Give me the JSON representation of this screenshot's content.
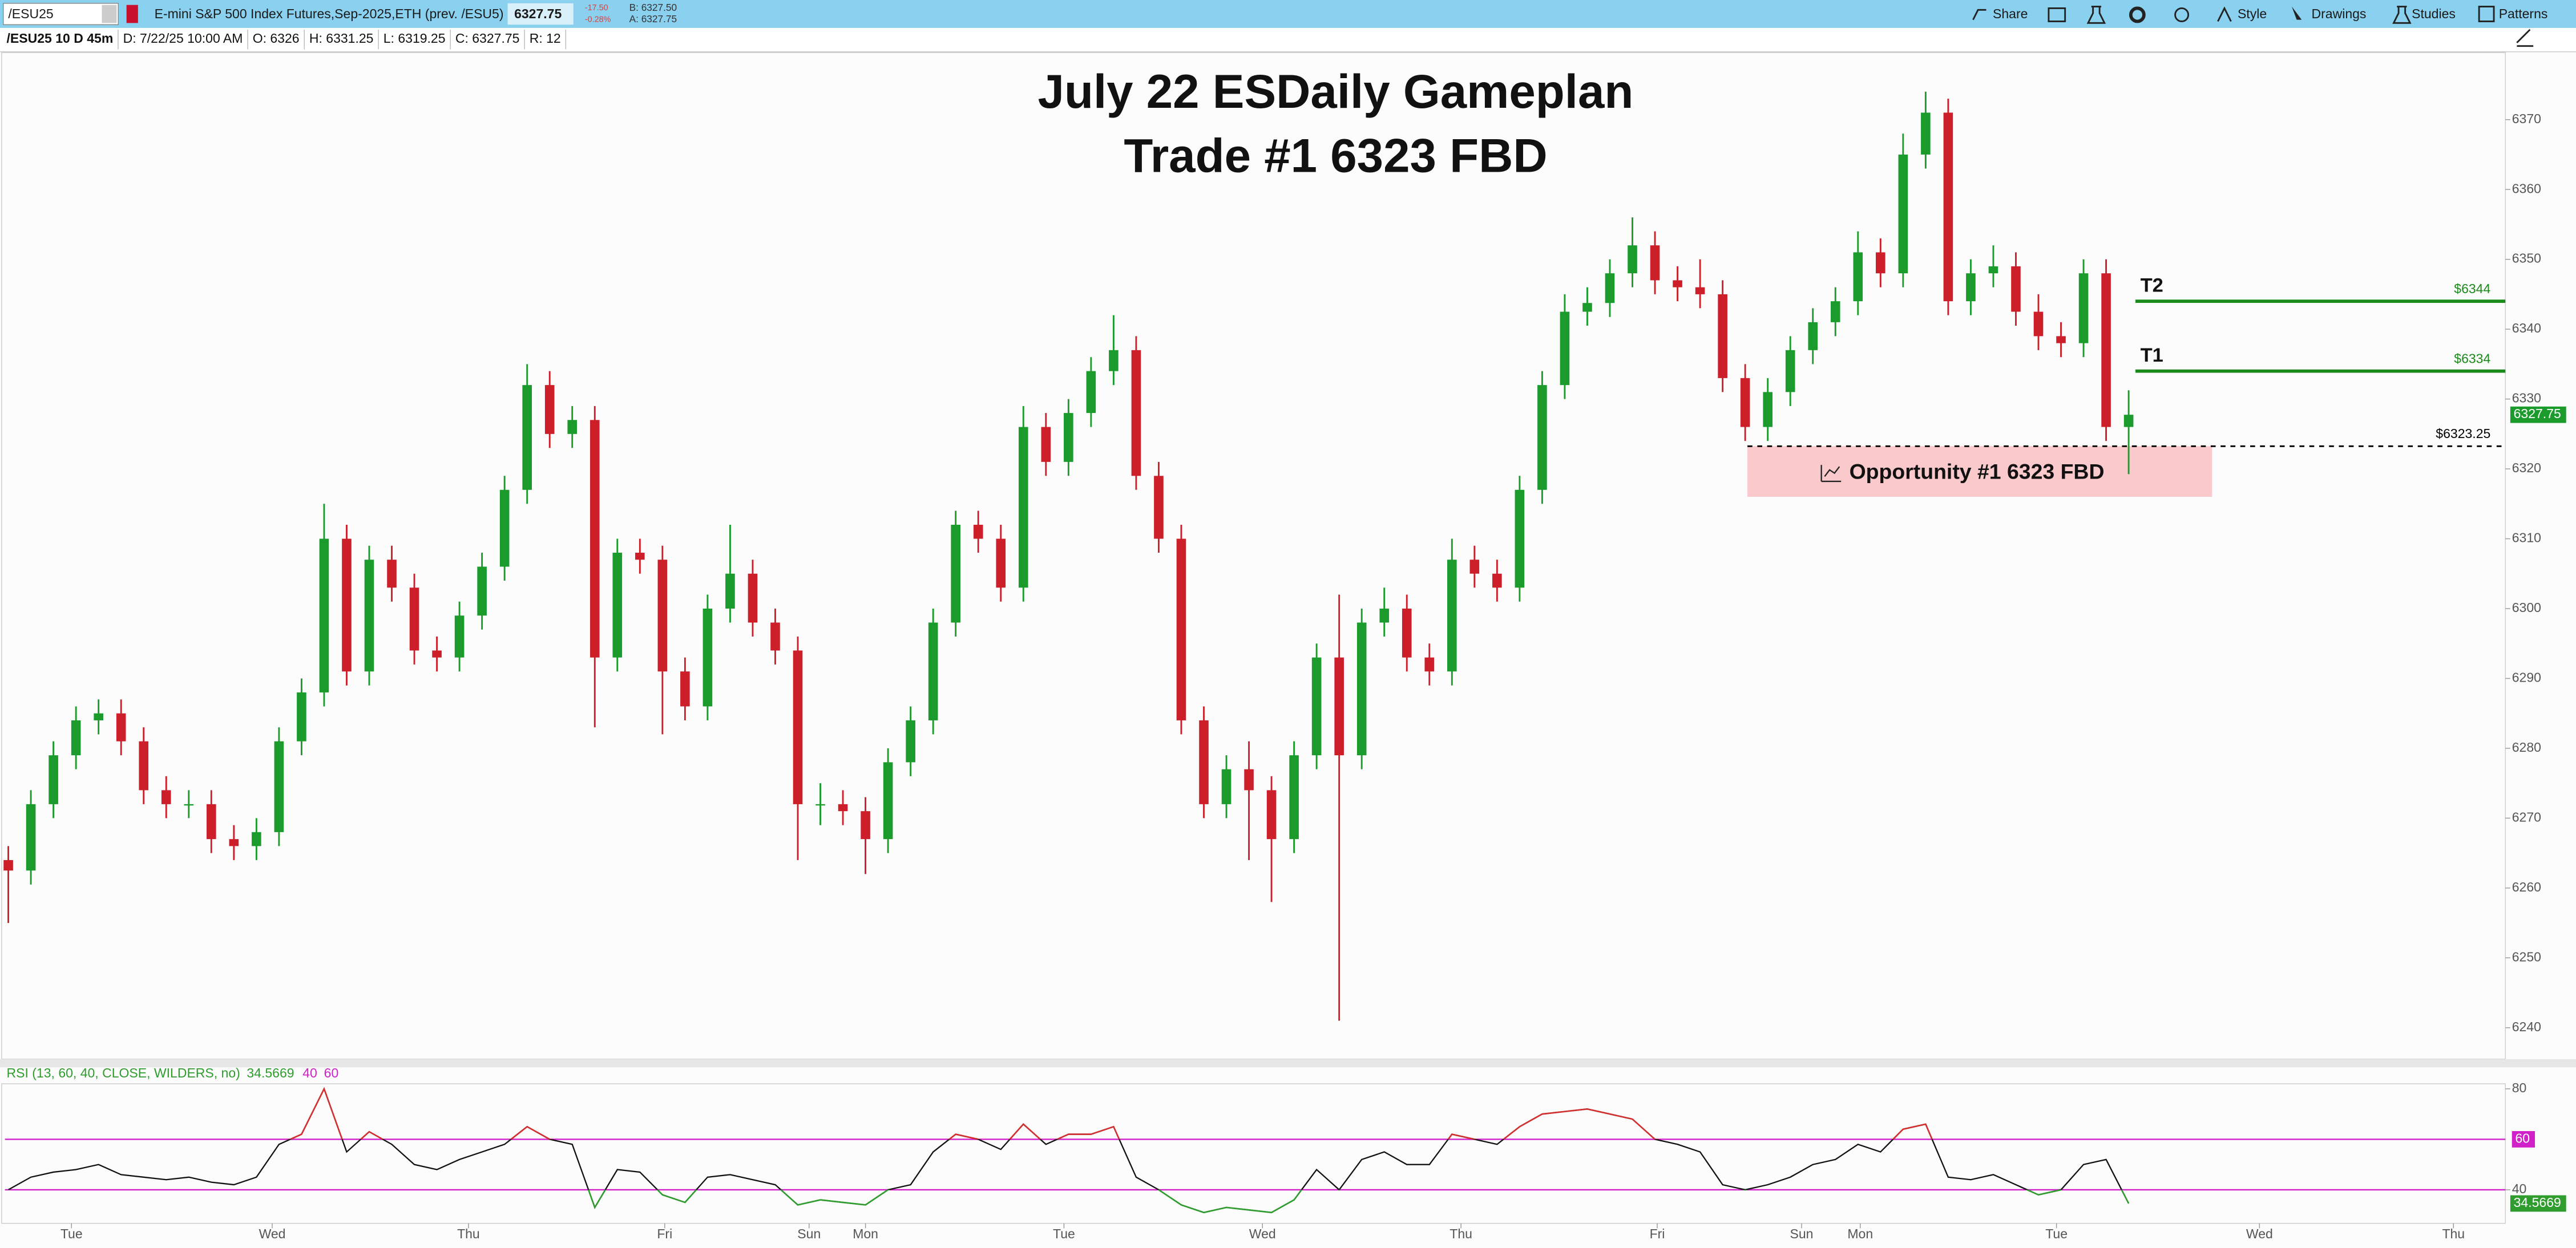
{
  "toolbar": {
    "symbol": "/ESU25",
    "description": "E-mini S&P 500 Index Futures,Sep-2025,ETH (prev. /ESU5)",
    "last": "6327.75",
    "change": "-17.50",
    "change_pct": "-0.28%",
    "bid": "B: 6327.50",
    "ask": "A: 6327.75",
    "buttons": [
      "Share",
      "Style",
      "Drawings",
      "Studies",
      "Patterns"
    ]
  },
  "info_bar": [
    "/ESU25 10 D 45m",
    "D: 7/22/25 10:00 AM",
    "O: 6326",
    "H: 6331.25",
    "L: 6319.25",
    "C: 6327.75",
    "R: 12"
  ],
  "chart_data": [
    {
      "type": "candlestick",
      "title": "July 22 ESDaily Gameplan",
      "subtitle": "Trade #1 6323 FBD",
      "up_color": "#1a9b2c",
      "down_color": "#cc1f2a",
      "xlim": [
        -0.15,
        110.7
      ],
      "ylim": [
        6235.5,
        6379.6
      ],
      "yticks": [
        6240,
        6250,
        6260,
        6270,
        6280,
        6290,
        6300,
        6310,
        6320,
        6330,
        6340,
        6350,
        6360,
        6370
      ],
      "open": [
        6264,
        6262.5,
        6272,
        6279,
        6284,
        6285,
        6281,
        6274,
        6272,
        6272,
        6267,
        6266,
        6268,
        6281,
        6288,
        6310,
        6291,
        6307,
        6303,
        6294,
        6293,
        6299,
        6306,
        6317,
        6332,
        6325,
        6327,
        6293,
        6308,
        6307,
        6291,
        6286,
        6300,
        6305,
        6298,
        6294,
        6272,
        6272,
        6271,
        6267,
        6278,
        6284,
        6298,
        6312,
        6310,
        6303,
        6326,
        6321,
        6328,
        6334,
        6337,
        6319,
        6310,
        6284,
        6272,
        6277,
        6274,
        6267,
        6279,
        6293,
        6279,
        6298,
        6300,
        6293,
        6291,
        6307,
        6305,
        6303,
        6317,
        6332,
        6342.5,
        6343.75,
        6348,
        6352,
        6347,
        6346,
        6345,
        6333,
        6326,
        6331,
        6337,
        6341,
        6344,
        6351,
        6348,
        6365,
        6371,
        6344,
        6348,
        6349,
        6342.5,
        6339,
        6338,
        6348,
        6326
      ],
      "high": [
        6266,
        6274,
        6281,
        6286,
        6287,
        6287,
        6283,
        6276,
        6274,
        6274,
        6269,
        6270,
        6283,
        6290,
        6315,
        6312,
        6309,
        6309,
        6305,
        6296,
        6301,
        6308,
        6319,
        6335,
        6334,
        6329,
        6329,
        6310,
        6310,
        6309,
        6293,
        6302,
        6312,
        6307,
        6300,
        6296,
        6275,
        6274,
        6273,
        6280,
        6286,
        6300,
        6314,
        6314,
        6312,
        6329,
        6328,
        6330,
        6336,
        6342,
        6339,
        6321,
        6312,
        6286,
        6279,
        6281,
        6276,
        6281,
        6295,
        6302,
        6300,
        6303,
        6302,
        6295,
        6310,
        6309,
        6307,
        6319,
        6334,
        6345,
        6346,
        6350,
        6356,
        6354,
        6349,
        6350,
        6347,
        6335,
        6333,
        6339,
        6343,
        6346,
        6354,
        6353,
        6368,
        6374,
        6373,
        6350,
        6352,
        6351,
        6345,
        6341,
        6350,
        6350,
        6331.25
      ],
      "low": [
        6255,
        6260.5,
        6270,
        6277,
        6282,
        6279,
        6272,
        6270,
        6270,
        6265,
        6264,
        6264,
        6266,
        6279,
        6286,
        6289,
        6289,
        6301,
        6292,
        6291,
        6291,
        6297,
        6304,
        6315,
        6323,
        6323,
        6283,
        6291,
        6305,
        6282,
        6284,
        6284,
        6298,
        6296,
        6292,
        6264,
        6269,
        6269,
        6262,
        6265,
        6276,
        6282,
        6296,
        6308,
        6301,
        6301,
        6319,
        6319,
        6326,
        6332,
        6317,
        6308,
        6282,
        6270,
        6270,
        6264,
        6258,
        6265,
        6277,
        6241,
        6277,
        6296,
        6291,
        6289,
        6289,
        6303,
        6301,
        6301,
        6315,
        6330,
        6340.5,
        6341.75,
        6346,
        6345,
        6344,
        6343,
        6331,
        6324,
        6324,
        6329,
        6335,
        6339,
        6342,
        6346,
        6346,
        6363,
        6342,
        6342,
        6346,
        6340.5,
        6337,
        6336,
        6336,
        6324,
        6319.25
      ],
      "close": [
        6262.5,
        6272,
        6279,
        6284,
        6285,
        6281,
        6274,
        6272,
        6272,
        6267,
        6266,
        6268,
        6281,
        6288,
        6310,
        6291,
        6307,
        6303,
        6294,
        6293,
        6299,
        6306,
        6317,
        6332,
        6325,
        6327,
        6293,
        6308,
        6307,
        6291,
        6286,
        6300,
        6305,
        6298,
        6294,
        6272,
        6272,
        6271,
        6267,
        6278,
        6284,
        6298,
        6312,
        6310,
        6303,
        6326,
        6321,
        6328,
        6334,
        6337,
        6319,
        6310,
        6284,
        6272,
        6277,
        6274,
        6267,
        6279,
        6293,
        6279,
        6298,
        6300,
        6293,
        6291,
        6307,
        6305,
        6303,
        6317,
        6332,
        6342.5,
        6343.75,
        6348,
        6352,
        6347,
        6346,
        6345,
        6333,
        6326,
        6331,
        6337,
        6341,
        6344,
        6351,
        6348,
        6365,
        6371,
        6344,
        6348,
        6349,
        6342.5,
        6339,
        6338,
        6348,
        6326,
        6327.75
      ],
      "levels": [
        {
          "label": "T2",
          "value": 6344,
          "value_label": "$6344",
          "color": "#1a8a1a",
          "style": "solid"
        },
        {
          "label": "T1",
          "value": 6334,
          "value_label": "$6334",
          "color": "#1a8a1a",
          "style": "solid"
        },
        {
          "value": 6323.25,
          "value_label": "$6323.25",
          "color": "#000000",
          "style": "dashed"
        }
      ],
      "zone": {
        "label": "Opportunity #1 6323 FBD",
        "low": 6316,
        "high": 6323.25,
        "color": "#f9c9cb"
      }
    },
    {
      "type": "line",
      "title": "RSI (13, 60, 40, CLOSE, WILDERS, no)",
      "color": "#111111",
      "overbought_color": "#d32f2f",
      "oversold_color": "#2e9d2e",
      "level_color": "#d020c8",
      "levels": [
        60,
        40
      ],
      "xlim": [
        -0.15,
        110.7
      ],
      "ylim": [
        26.7,
        82
      ],
      "yticks": [
        40,
        80
      ],
      "xticks": [
        {
          "value": 2.8,
          "label": "Tue"
        },
        {
          "value": 11.7,
          "label": "Wed"
        },
        {
          "value": 20.4,
          "label": "Thu"
        },
        {
          "value": 29.1,
          "label": "Fri"
        },
        {
          "value": 35.5,
          "label": "Sun"
        },
        {
          "value": 38.0,
          "label": "Mon"
        },
        {
          "value": 46.8,
          "label": "Tue"
        },
        {
          "value": 55.6,
          "label": "Wed"
        },
        {
          "value": 64.4,
          "label": "Thu"
        },
        {
          "value": 73.1,
          "label": "Fri"
        },
        {
          "value": 79.5,
          "label": "Sun"
        },
        {
          "value": 82.1,
          "label": "Mon"
        },
        {
          "value": 90.8,
          "label": "Tue"
        },
        {
          "value": 99.8,
          "label": "Wed"
        },
        {
          "value": 108.4,
          "label": "Thu"
        }
      ],
      "values": [
        40,
        45,
        47,
        48,
        50,
        46,
        45,
        44,
        45,
        43,
        42,
        45,
        58,
        62,
        80,
        55,
        63,
        58,
        50,
        48,
        52,
        55,
        58,
        65,
        60,
        58,
        33,
        48,
        47,
        38,
        35,
        45,
        46,
        44,
        42,
        34,
        36,
        35,
        34,
        40,
        42,
        55,
        62,
        60,
        56,
        66,
        58,
        62,
        62,
        65,
        45,
        40,
        34,
        31,
        33,
        32,
        31,
        36,
        48,
        40,
        52,
        55,
        50,
        50,
        62,
        60,
        58,
        65,
        70,
        71,
        72,
        70,
        68,
        60,
        58,
        55,
        42,
        40,
        42,
        45,
        50,
        52,
        58,
        55,
        64,
        66,
        45,
        44,
        46,
        42,
        38,
        40,
        50,
        52,
        34.5669
      ]
    }
  ]
}
